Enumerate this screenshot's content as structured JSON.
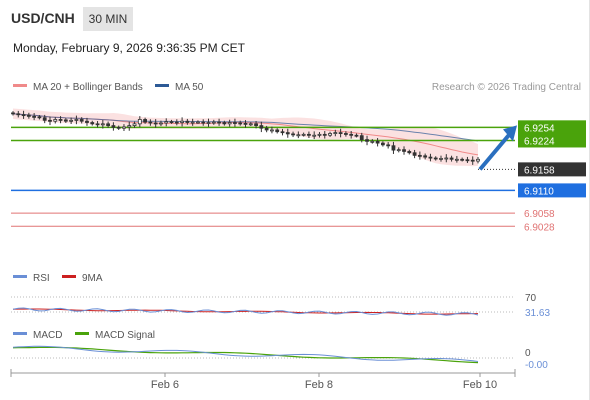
{
  "header": {
    "symbol": "USD/CNH",
    "timeframe": "30 MIN",
    "datetime": "Monday, February 9, 2026 9:36:35 PM CET"
  },
  "colors": {
    "bollinger_band_fill": "#fadada",
    "ma20": "#f08a8a",
    "ma50": "#2d5a96",
    "candle": "#333333",
    "resistance": "#4aa30b",
    "pivot": "#1f6fe0",
    "support": "#e07373",
    "current_price": "#333333",
    "rsi": "#6a8fd6",
    "rsi_ma": "#cc2020",
    "macd": "#6a8fd6",
    "macd_signal": "#4aa30b"
  },
  "chart_data": [
    {
      "type": "candlestick",
      "panel": "price",
      "legend": [
        "MA 20 + Bollinger Bands",
        "MA 50"
      ],
      "attribution": "Research © 2026 Trading Central",
      "x_tick_labels": [
        "Feb 6",
        "Feb 8",
        "Feb 10"
      ],
      "ylim": [
        6.9015,
        6.9305
      ],
      "close": [
        6.9285,
        6.9283,
        6.9282,
        6.9279,
        6.9278,
        6.9276,
        6.927,
        6.9268,
        6.9272,
        6.9271,
        6.9268,
        6.927,
        6.9272,
        6.9268,
        6.9265,
        6.9262,
        6.926,
        6.9262,
        6.9258,
        6.9254,
        6.9252,
        6.9255,
        6.9258,
        6.9262,
        6.9272,
        6.9266,
        6.9264,
        6.9262,
        6.9264,
        6.9267,
        6.9266,
        6.9265,
        6.9268,
        6.9265,
        6.9266,
        6.9266,
        6.9264,
        6.9265,
        6.9266,
        6.9265,
        6.9262,
        6.9265,
        6.9264,
        6.9263,
        6.9261,
        6.9262,
        6.9258,
        6.9252,
        6.9248,
        6.9248,
        6.9244,
        6.9242,
        6.9239,
        6.9237,
        6.9237,
        6.9238,
        6.9236,
        6.9236,
        6.9238,
        6.9236,
        6.924,
        6.9242,
        6.924,
        6.9238,
        6.9236,
        6.9235,
        6.9226,
        6.9222,
        6.9222,
        6.9218,
        6.9214,
        6.9212,
        6.9202,
        6.9203,
        6.9199,
        6.9196,
        6.919,
        6.9189,
        6.9186,
        6.9184,
        6.9182,
        6.9183,
        6.9184,
        6.9181,
        6.9181,
        6.918,
        6.9179,
        6.9177,
        6.9181
      ],
      "current_price": 6.9158,
      "levels": [
        {
          "label": "6.9254",
          "value": 6.9254,
          "kind": "resistance"
        },
        {
          "label": "6.9224",
          "value": 6.9224,
          "kind": "resistance"
        },
        {
          "label": "6.9158",
          "value": 6.9158,
          "kind": "current"
        },
        {
          "label": "6.9110",
          "value": 6.911,
          "kind": "pivot"
        },
        {
          "label": "6.9058",
          "value": 6.9058,
          "kind": "support"
        },
        {
          "label": "6.9028",
          "value": 6.9028,
          "kind": "support"
        }
      ],
      "projection": "up"
    },
    {
      "type": "line",
      "panel": "rsi",
      "legend": [
        "RSI",
        "9MA"
      ],
      "y_tick_labels": [
        "70"
      ],
      "current_value_label": "31.63",
      "ylim": [
        0,
        100
      ]
    },
    {
      "type": "line",
      "panel": "macd",
      "legend": [
        "MACD",
        "MACD Signal"
      ],
      "y_tick_labels": [
        "0"
      ],
      "current_value_label": "-0.00"
    }
  ]
}
